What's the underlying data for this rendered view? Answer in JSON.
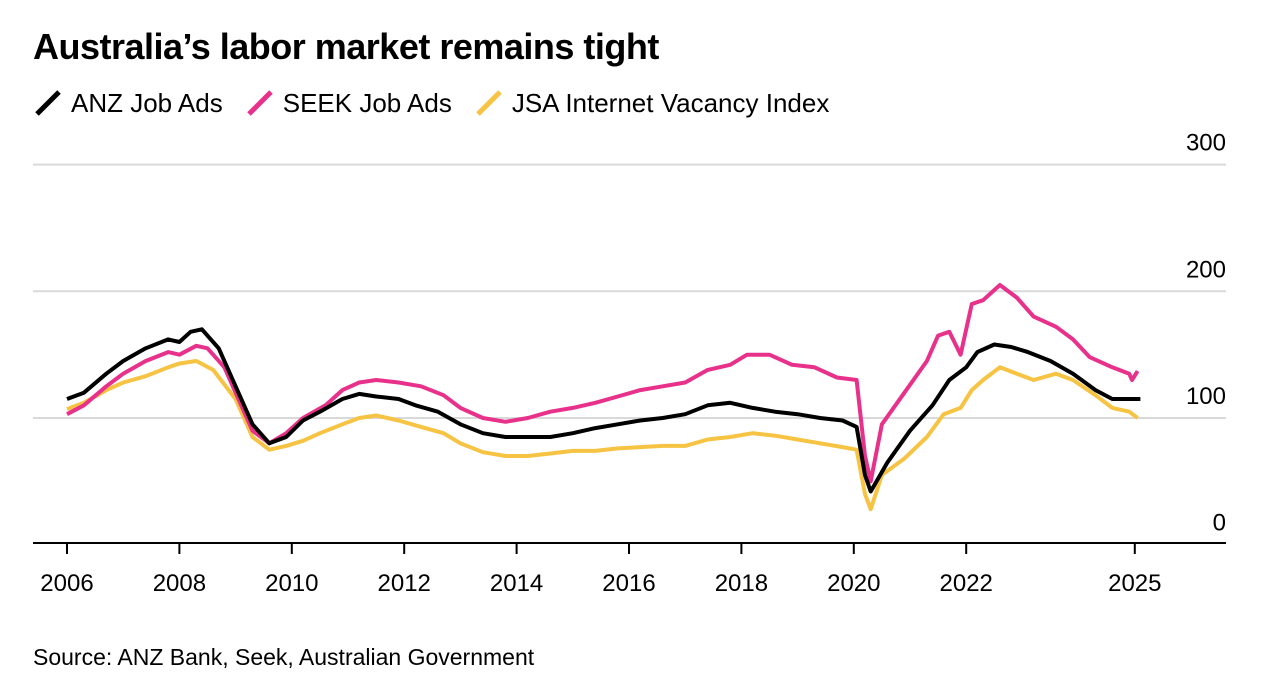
{
  "title": "Australia’s labor market remains tight",
  "source": "Source: ANZ Bank, Seek, Australian Government",
  "colors": {
    "anz": "#000000",
    "seek": "#e8318a",
    "jsa": "#f6c343",
    "grid": "#d9d9d9"
  },
  "chart_data": {
    "type": "line",
    "title": "Australia’s labor market remains tight",
    "xlabel": "",
    "ylabel": "",
    "xlim": [
      2006,
      2025.4
    ],
    "ylim": [
      0,
      300
    ],
    "x_ticks": [
      "2006",
      "2008",
      "2010",
      "2012",
      "2014",
      "2016",
      "2018",
      "2020",
      "2022",
      "2025"
    ],
    "y_ticks": [
      "0",
      "100",
      "200",
      "300"
    ],
    "grid": "horizontal",
    "legend_position": "top-left",
    "series": [
      {
        "name": "ANZ Job Ads",
        "color": "#000000",
        "points": [
          [
            2006.0,
            115
          ],
          [
            2006.3,
            120
          ],
          [
            2006.7,
            135
          ],
          [
            2007.0,
            145
          ],
          [
            2007.4,
            155
          ],
          [
            2007.8,
            162
          ],
          [
            2008.0,
            160
          ],
          [
            2008.2,
            168
          ],
          [
            2008.4,
            170
          ],
          [
            2008.7,
            155
          ],
          [
            2009.0,
            125
          ],
          [
            2009.3,
            95
          ],
          [
            2009.6,
            80
          ],
          [
            2009.9,
            85
          ],
          [
            2010.2,
            98
          ],
          [
            2010.5,
            105
          ],
          [
            2010.9,
            115
          ],
          [
            2011.2,
            119
          ],
          [
            2011.5,
            117
          ],
          [
            2011.9,
            115
          ],
          [
            2012.2,
            110
          ],
          [
            2012.6,
            105
          ],
          [
            2013.0,
            95
          ],
          [
            2013.4,
            88
          ],
          [
            2013.8,
            85
          ],
          [
            2014.2,
            85
          ],
          [
            2014.6,
            85
          ],
          [
            2015.0,
            88
          ],
          [
            2015.4,
            92
          ],
          [
            2015.8,
            95
          ],
          [
            2016.2,
            98
          ],
          [
            2016.6,
            100
          ],
          [
            2017.0,
            103
          ],
          [
            2017.4,
            110
          ],
          [
            2017.8,
            112
          ],
          [
            2018.2,
            108
          ],
          [
            2018.6,
            105
          ],
          [
            2019.0,
            103
          ],
          [
            2019.4,
            100
          ],
          [
            2019.8,
            98
          ],
          [
            2020.05,
            93
          ],
          [
            2020.2,
            55
          ],
          [
            2020.3,
            42
          ],
          [
            2020.6,
            65
          ],
          [
            2021.0,
            90
          ],
          [
            2021.4,
            110
          ],
          [
            2021.7,
            130
          ],
          [
            2022.0,
            140
          ],
          [
            2022.2,
            152
          ],
          [
            2022.5,
            158
          ],
          [
            2022.8,
            156
          ],
          [
            2023.1,
            152
          ],
          [
            2023.5,
            145
          ],
          [
            2023.9,
            135
          ],
          [
            2024.3,
            122
          ],
          [
            2024.6,
            115
          ],
          [
            2024.9,
            115
          ],
          [
            2025.1,
            115
          ]
        ]
      },
      {
        "name": "SEEK Job Ads",
        "color": "#e8318a",
        "points": [
          [
            2006.0,
            103
          ],
          [
            2006.3,
            110
          ],
          [
            2006.7,
            125
          ],
          [
            2007.0,
            135
          ],
          [
            2007.4,
            145
          ],
          [
            2007.8,
            152
          ],
          [
            2008.0,
            150
          ],
          [
            2008.3,
            157
          ],
          [
            2008.5,
            155
          ],
          [
            2008.8,
            140
          ],
          [
            2009.0,
            120
          ],
          [
            2009.3,
            90
          ],
          [
            2009.6,
            80
          ],
          [
            2009.9,
            88
          ],
          [
            2010.2,
            100
          ],
          [
            2010.6,
            110
          ],
          [
            2010.9,
            122
          ],
          [
            2011.2,
            128
          ],
          [
            2011.5,
            130
          ],
          [
            2011.9,
            128
          ],
          [
            2012.3,
            125
          ],
          [
            2012.7,
            118
          ],
          [
            2013.0,
            108
          ],
          [
            2013.4,
            100
          ],
          [
            2013.8,
            97
          ],
          [
            2014.2,
            100
          ],
          [
            2014.6,
            105
          ],
          [
            2015.0,
            108
          ],
          [
            2015.4,
            112
          ],
          [
            2015.8,
            117
          ],
          [
            2016.2,
            122
          ],
          [
            2016.6,
            125
          ],
          [
            2017.0,
            128
          ],
          [
            2017.4,
            138
          ],
          [
            2017.8,
            142
          ],
          [
            2018.1,
            150
          ],
          [
            2018.5,
            150
          ],
          [
            2018.9,
            142
          ],
          [
            2019.3,
            140
          ],
          [
            2019.7,
            132
          ],
          [
            2020.05,
            130
          ],
          [
            2020.2,
            70
          ],
          [
            2020.3,
            50
          ],
          [
            2020.5,
            95
          ],
          [
            2020.9,
            120
          ],
          [
            2021.3,
            145
          ],
          [
            2021.5,
            165
          ],
          [
            2021.7,
            168
          ],
          [
            2021.9,
            150
          ],
          [
            2022.1,
            190
          ],
          [
            2022.3,
            193
          ],
          [
            2022.6,
            205
          ],
          [
            2022.9,
            195
          ],
          [
            2023.2,
            180
          ],
          [
            2023.6,
            172
          ],
          [
            2023.9,
            162
          ],
          [
            2024.2,
            148
          ],
          [
            2024.6,
            140
          ],
          [
            2024.9,
            135
          ],
          [
            2024.95,
            130
          ],
          [
            2025.05,
            137
          ]
        ]
      },
      {
        "name": "JSA Internet Vacancy Index",
        "color": "#f6c343",
        "points": [
          [
            2006.0,
            107
          ],
          [
            2006.3,
            112
          ],
          [
            2006.7,
            122
          ],
          [
            2007.0,
            128
          ],
          [
            2007.4,
            133
          ],
          [
            2007.8,
            140
          ],
          [
            2008.0,
            143
          ],
          [
            2008.3,
            145
          ],
          [
            2008.6,
            138
          ],
          [
            2009.0,
            115
          ],
          [
            2009.3,
            85
          ],
          [
            2009.6,
            75
          ],
          [
            2009.9,
            78
          ],
          [
            2010.2,
            82
          ],
          [
            2010.5,
            88
          ],
          [
            2010.9,
            95
          ],
          [
            2011.2,
            100
          ],
          [
            2011.5,
            102
          ],
          [
            2011.9,
            98
          ],
          [
            2012.3,
            93
          ],
          [
            2012.7,
            88
          ],
          [
            2013.0,
            80
          ],
          [
            2013.4,
            73
          ],
          [
            2013.8,
            70
          ],
          [
            2014.2,
            70
          ],
          [
            2014.6,
            72
          ],
          [
            2015.0,
            74
          ],
          [
            2015.4,
            74
          ],
          [
            2015.8,
            76
          ],
          [
            2016.2,
            77
          ],
          [
            2016.6,
            78
          ],
          [
            2017.0,
            78
          ],
          [
            2017.4,
            83
          ],
          [
            2017.8,
            85
          ],
          [
            2018.2,
            88
          ],
          [
            2018.6,
            86
          ],
          [
            2019.0,
            83
          ],
          [
            2019.4,
            80
          ],
          [
            2019.8,
            77
          ],
          [
            2020.05,
            75
          ],
          [
            2020.2,
            40
          ],
          [
            2020.3,
            28
          ],
          [
            2020.5,
            55
          ],
          [
            2020.9,
            68
          ],
          [
            2021.3,
            85
          ],
          [
            2021.6,
            103
          ],
          [
            2021.9,
            108
          ],
          [
            2022.1,
            122
          ],
          [
            2022.3,
            130
          ],
          [
            2022.6,
            140
          ],
          [
            2022.9,
            135
          ],
          [
            2023.2,
            130
          ],
          [
            2023.6,
            135
          ],
          [
            2023.9,
            130
          ],
          [
            2024.3,
            118
          ],
          [
            2024.6,
            108
          ],
          [
            2024.9,
            105
          ],
          [
            2025.05,
            100
          ]
        ]
      }
    ]
  }
}
